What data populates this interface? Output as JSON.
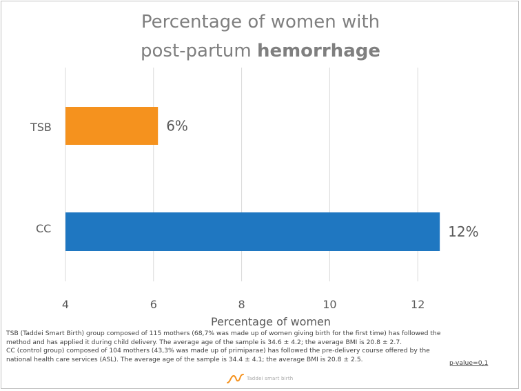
{
  "title": {
    "line1": "Percentage of women with",
    "line2_prefix": "post-partum ",
    "line2_bold": "hemorrhage"
  },
  "chart_data": {
    "type": "bar",
    "orientation": "horizontal",
    "categories": [
      "TSB",
      "CC"
    ],
    "values": [
      6.1,
      12.5
    ],
    "data_labels": [
      "6%",
      "12%"
    ],
    "colors": [
      "#f5921e",
      "#1f77c1"
    ],
    "xlabel": "Percentage of women",
    "xlim": [
      4,
      12.5
    ],
    "xticks": [
      4,
      6,
      8,
      10,
      12
    ],
    "grid": true,
    "legend": "none"
  },
  "footnote": {
    "line1": "TSB (Taddei Smart Birth) group composed of 115 mothers (68,7% was made up of women giving birth for the first time) has followed the",
    "line2": "method and has applied it during child delivery. The average age of the sample is 34.6 ± 4.2; the average BMI is 20.8 ± 2.7.",
    "line3": "CC (control group) composed of 104 mothers (43,3% was made up of primiparae) has followed the pre-delivery course offered by the",
    "line4": "national health care services (ASL). The average age of the sample is 34.4 ± 4.1; the average BMI is 20.8 ± 2.5.",
    "pvalue": "p-value=0,1"
  },
  "logo": {
    "text": "Taddei smart birth",
    "color": "#f5921e"
  }
}
